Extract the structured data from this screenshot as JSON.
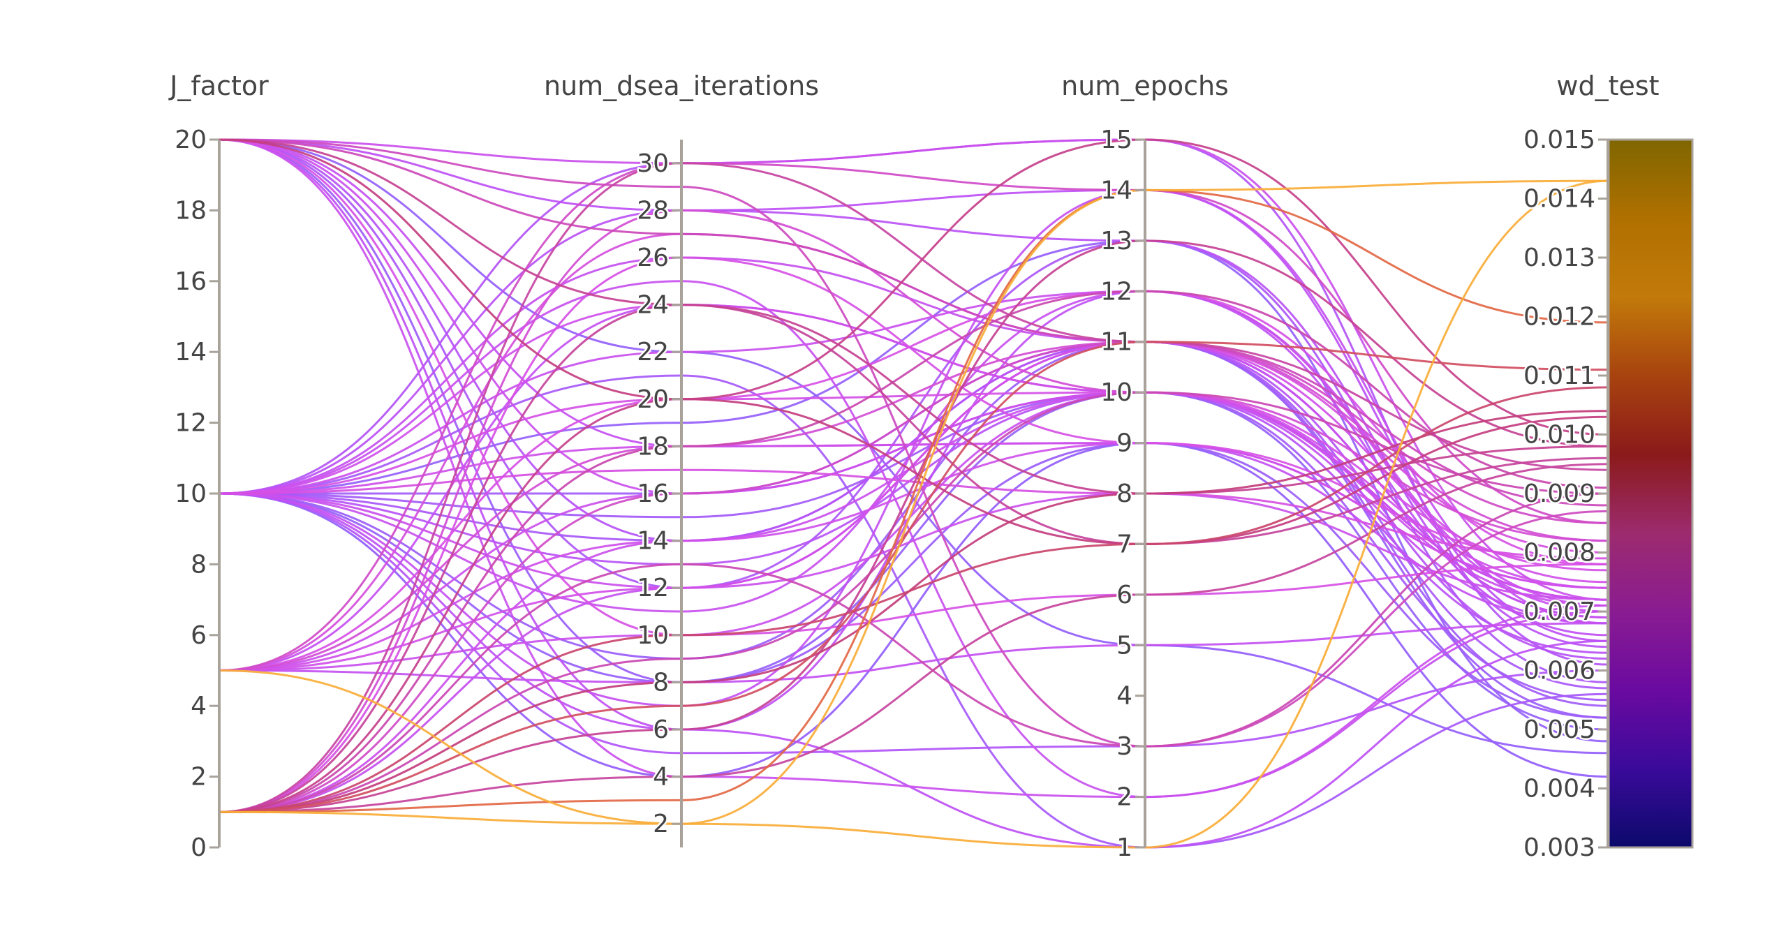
{
  "chart_data": {
    "type": "parallel_coordinates",
    "title": "",
    "dimensions": [
      {
        "name": "J_factor",
        "range": [
          0,
          20
        ],
        "ticks": [
          "0",
          "2",
          "4",
          "6",
          "8",
          "10",
          "12",
          "14",
          "16",
          "18",
          "20"
        ]
      },
      {
        "name": "num_dsea_iterations",
        "range": [
          1,
          31
        ],
        "ticks": [
          "2",
          "4",
          "6",
          "8",
          "10",
          "12",
          "14",
          "16",
          "18",
          "20",
          "22",
          "24",
          "26",
          "28",
          "30"
        ]
      },
      {
        "name": "num_epochs",
        "range": [
          1,
          15
        ],
        "ticks": [
          "1",
          "2",
          "3",
          "4",
          "5",
          "6",
          "7",
          "8",
          "9",
          "10",
          "11",
          "12",
          "13",
          "14",
          "15"
        ]
      },
      {
        "name": "wd_test",
        "range": [
          0.003,
          0.015
        ],
        "ticks": [
          "0.003",
          "0.004",
          "0.005",
          "0.006",
          "0.007",
          "0.008",
          "0.009",
          "0.010",
          "0.011",
          "0.012",
          "0.013",
          "0.014",
          "0.015"
        ]
      }
    ],
    "colorscale": {
      "variable": "wd_test",
      "range": [
        0.003,
        0.015
      ],
      "colors": [
        "#0d0887",
        "#46039f",
        "#7201a8",
        "#9c179e",
        "#bd3786",
        "#d8576b",
        "#ed7953",
        "#fb9f3a",
        "#fdca26",
        "#f0f921"
      ],
      "observed_colors": [
        "#0c0a6b",
        "#3a0a9a",
        "#6a0aa0",
        "#8a1c92",
        "#9c2b6e",
        "#8b1a1a",
        "#a8430f",
        "#c27a0a",
        "#b07000",
        "#7f6600"
      ]
    },
    "lines": [
      [
        20,
        30,
        15,
        0.0072
      ],
      [
        20,
        28,
        14,
        0.0065
      ],
      [
        20,
        27,
        11,
        0.0088
      ],
      [
        20,
        24,
        8,
        0.0098
      ],
      [
        20,
        20,
        7,
        0.0103
      ],
      [
        20,
        16,
        10,
        0.0072
      ],
      [
        20,
        14,
        11,
        0.0062
      ],
      [
        20,
        12,
        13,
        0.0058
      ],
      [
        20,
        8,
        9,
        0.0052
      ],
      [
        20,
        6,
        12,
        0.0066
      ],
      [
        20,
        29,
        3,
        0.0087
      ],
      [
        20,
        22,
        5,
        0.0046
      ],
      [
        20,
        18,
        9,
        0.0068
      ],
      [
        20,
        10,
        6,
        0.0078
      ],
      [
        20,
        4,
        2,
        0.0071
      ],
      [
        10,
        30,
        15,
        0.0061
      ],
      [
        10,
        28,
        13,
        0.0064
      ],
      [
        10,
        26,
        11,
        0.0069
      ],
      [
        10,
        24,
        10,
        0.0074
      ],
      [
        10,
        22,
        12,
        0.0071
      ],
      [
        10,
        20,
        10,
        0.0077
      ],
      [
        10,
        18,
        9,
        0.0074
      ],
      [
        10,
        17,
        8,
        0.0079
      ],
      [
        10,
        16,
        11,
        0.0054
      ],
      [
        10,
        15,
        10,
        0.0055
      ],
      [
        10,
        14,
        11,
        0.0057
      ],
      [
        10,
        13,
        10,
        0.0063
      ],
      [
        10,
        12,
        8,
        0.0072
      ],
      [
        10,
        11,
        12,
        0.007
      ],
      [
        10,
        9,
        11,
        0.0052
      ],
      [
        10,
        8,
        10,
        0.005
      ],
      [
        10,
        7,
        14,
        0.0068
      ],
      [
        10,
        6,
        1,
        0.0065
      ],
      [
        10,
        5,
        3,
        0.006
      ],
      [
        10,
        4,
        9,
        0.0042
      ],
      [
        10,
        19,
        13,
        0.0048
      ],
      [
        10,
        21,
        1,
        0.0056
      ],
      [
        10,
        25,
        2,
        0.007
      ],
      [
        5,
        30,
        14,
        0.0085
      ],
      [
        5,
        27,
        11,
        0.008
      ],
      [
        5,
        24,
        10,
        0.0068
      ],
      [
        5,
        20,
        12,
        0.0078
      ],
      [
        5,
        18,
        11,
        0.0082
      ],
      [
        5,
        16,
        10,
        0.0072
      ],
      [
        5,
        14,
        9,
        0.0074
      ],
      [
        5,
        12,
        11,
        0.0075
      ],
      [
        5,
        10,
        10,
        0.0071
      ],
      [
        5,
        8,
        5,
        0.0068
      ],
      [
        5,
        2,
        1,
        0.0143
      ],
      [
        1,
        30,
        11,
        0.0094
      ],
      [
        1,
        28,
        10,
        0.0082
      ],
      [
        1,
        26,
        9,
        0.0078
      ],
      [
        1,
        24,
        7,
        0.0096
      ],
      [
        1,
        20,
        15,
        0.01
      ],
      [
        1,
        18,
        12,
        0.0091
      ],
      [
        1,
        16,
        11,
        0.0085
      ],
      [
        1,
        14,
        10,
        0.0072
      ],
      [
        1,
        12,
        11,
        0.0069
      ],
      [
        1,
        10,
        7,
        0.0108
      ],
      [
        1,
        9,
        10,
        0.009
      ],
      [
        1,
        8,
        8,
        0.0104
      ],
      [
        1,
        7,
        11,
        0.0111
      ],
      [
        1,
        6,
        13,
        0.0098
      ],
      [
        1,
        3,
        14,
        0.0119
      ],
      [
        1,
        2,
        14,
        0.0143
      ],
      [
        1,
        4,
        6,
        0.0095
      ],
      [
        1,
        13,
        3,
        0.009
      ]
    ]
  }
}
